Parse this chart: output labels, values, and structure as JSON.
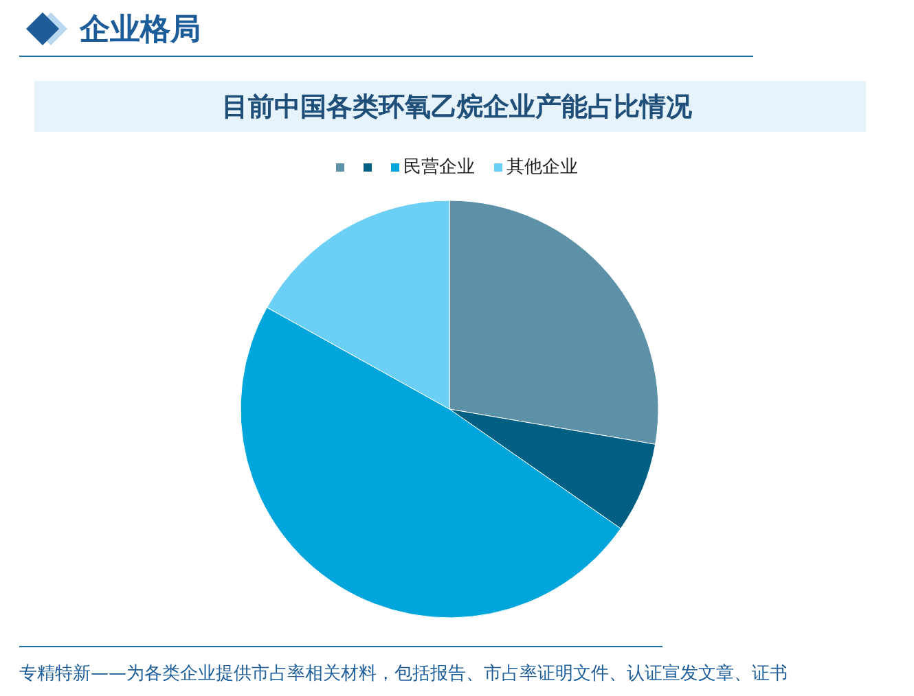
{
  "chart_data": {
    "type": "pie",
    "title": "目前中国各类环氧乙烷企业产能占比情况",
    "categories": [
      null,
      null,
      "民营企业",
      "其他企业"
    ],
    "values": [
      27.7,
      7.0,
      48.4,
      16.9
    ],
    "colors": [
      "#5c91a7",
      "#005f83",
      "#00a5dc",
      "#6ccff6"
    ],
    "legend": "top",
    "annotations": [
      "企业格局",
      "专精特新——为各类企业提供市占率相关材料，包括报告、市占率证明文件、认证宣发文章、证书"
    ]
  }
}
